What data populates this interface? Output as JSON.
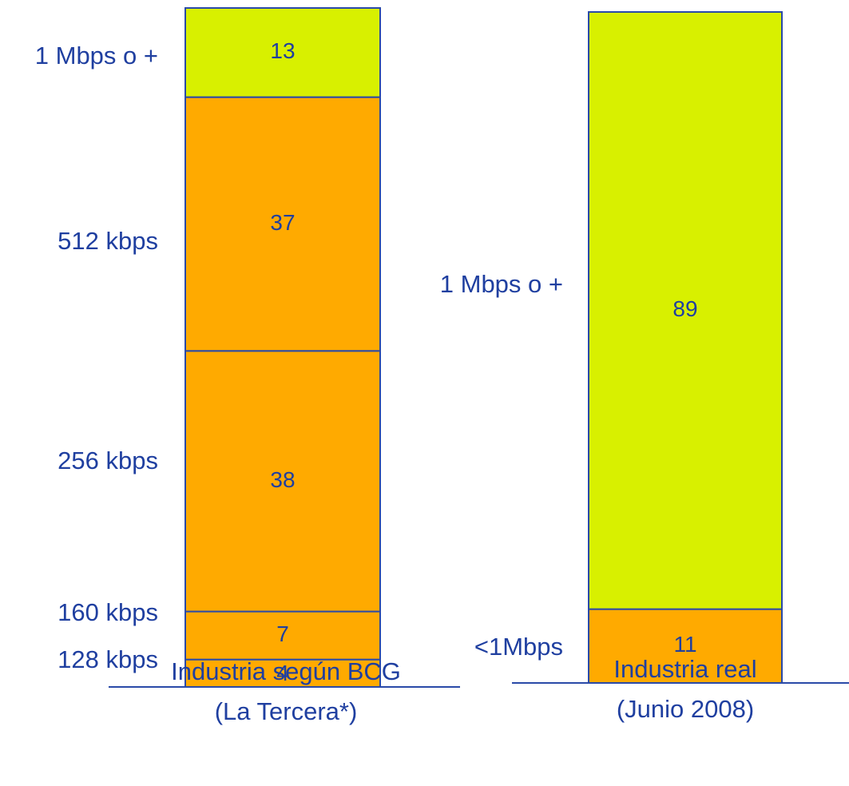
{
  "colors": {
    "text": "#1f3fa0",
    "border": "#2a4aa8",
    "orange": "#ffaa00",
    "lime": "#d8f000",
    "segment_value_text": "#1f3fa0",
    "lime_value_text": "#1f3fa0"
  },
  "chart_data": {
    "type": "stacked-bar",
    "bars": [
      {
        "caption": [
          "Industria según BCG",
          "(La Tercera*)"
        ],
        "segments": [
          {
            "label": "128 kbps",
            "value": 4,
            "color": "orange"
          },
          {
            "label": "160 kbps",
            "value": 7,
            "color": "orange"
          },
          {
            "label": "256 kbps",
            "value": 38,
            "color": "orange"
          },
          {
            "label": "512 kbps",
            "value": 37,
            "color": "orange"
          },
          {
            "label": "1 Mbps o +",
            "value": 13,
            "color": "lime"
          }
        ]
      },
      {
        "caption": [
          "Industria real",
          "(Junio 2008)"
        ],
        "segments": [
          {
            "label": "<1Mbps",
            "value": 11,
            "color": "orange"
          },
          {
            "label": "1 Mbps o +",
            "value": 89,
            "color": "lime"
          }
        ]
      }
    ]
  }
}
